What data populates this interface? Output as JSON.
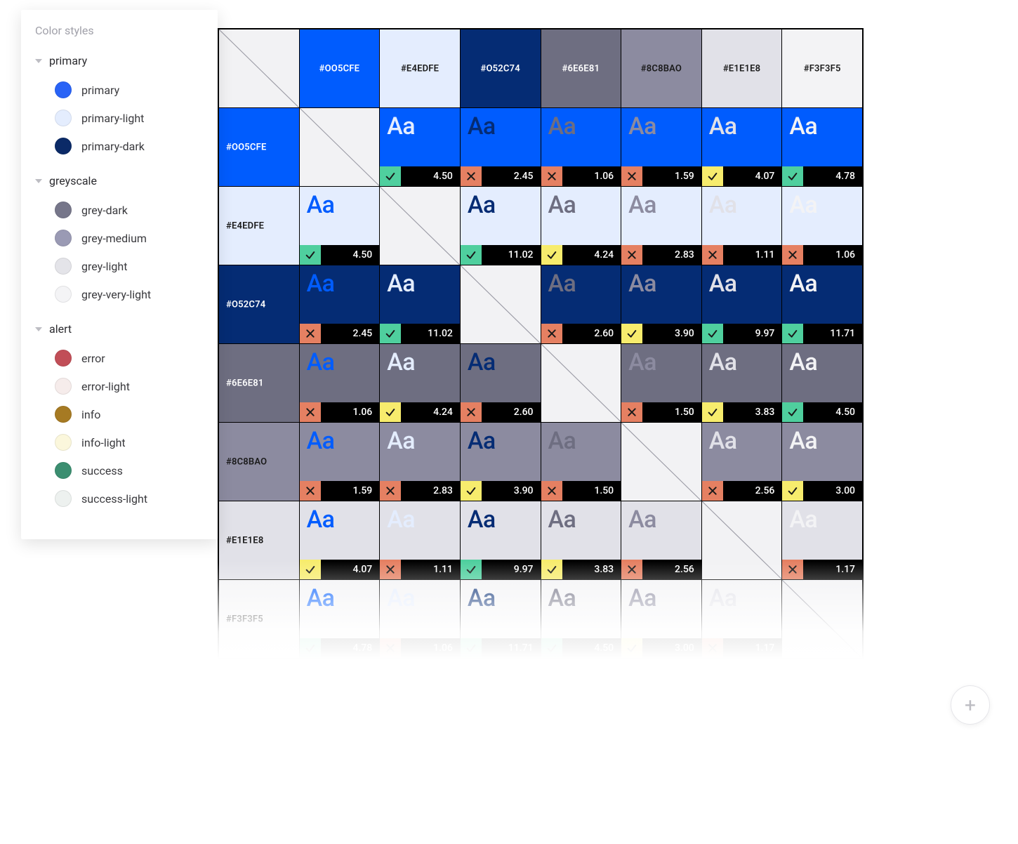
{
  "sidebar": {
    "title": "Color styles",
    "groups": [
      {
        "label": "primary",
        "items": [
          {
            "label": "primary",
            "swatch": "#2963f6"
          },
          {
            "label": "primary-light",
            "swatch": "#e4edfe"
          },
          {
            "label": "primary-dark",
            "swatch": "#0b2a67"
          }
        ]
      },
      {
        "label": "greyscale",
        "items": [
          {
            "label": "grey-dark",
            "swatch": "#76768a"
          },
          {
            "label": "grey-medium",
            "swatch": "#9a9ab4"
          },
          {
            "label": "grey-light",
            "swatch": "#e4e4e9"
          },
          {
            "label": "grey-very-light",
            "swatch": "#f4f4f6"
          }
        ]
      },
      {
        "label": "alert",
        "items": [
          {
            "label": "error",
            "swatch": "#c14e57"
          },
          {
            "label": "error-light",
            "swatch": "#f6eceb"
          },
          {
            "label": "info",
            "swatch": "#a67a23"
          },
          {
            "label": "info-light",
            "swatch": "#fbf7dc"
          },
          {
            "label": "success",
            "swatch": "#3b8e70"
          },
          {
            "label": "success-light",
            "swatch": "#edf1ef"
          }
        ]
      }
    ]
  },
  "matrix": {
    "sample_text": "Aa",
    "aa_fontsize": 34,
    "header_fontsize": 13,
    "score_fontsize": 14,
    "border_color": "#000000",
    "diagonal_bg": "#f2f2f4",
    "diagonal_line": "#9b9ba5",
    "score_bar_bg": "#000000",
    "score_text_color": "#ffffff",
    "status_colors": {
      "pass": "#4fcf9e",
      "fail": "#e58062",
      "warn": "#f7ec6d"
    },
    "status_icon_stroke": "#1a1a1a",
    "colors": [
      {
        "hex": "#005CFE",
        "label": "#OO5CFE",
        "label_color": "#ffffff"
      },
      {
        "hex": "#E4EDFE",
        "label": "#E4EDFE",
        "label_color": "#1a1a1a"
      },
      {
        "hex": "#052C74",
        "label": "#O52C74",
        "label_color": "#ffffff"
      },
      {
        "hex": "#6E6E81",
        "label": "#6E6E81",
        "label_color": "#ffffff"
      },
      {
        "hex": "#8C8BA0",
        "label": "#8C8BAO",
        "label_color": "#1a1a1a"
      },
      {
        "hex": "#E1E1E8",
        "label": "#E1E1E8",
        "label_color": "#1a1a1a"
      },
      {
        "hex": "#F3F3F5",
        "label": "#F3F3F5",
        "label_color": "#1a1a1a"
      }
    ],
    "scores": [
      [
        null,
        {
          "v": "4.50",
          "s": "pass"
        },
        {
          "v": "2.45",
          "s": "fail"
        },
        {
          "v": "1.06",
          "s": "fail"
        },
        {
          "v": "1.59",
          "s": "fail"
        },
        {
          "v": "4.07",
          "s": "warn"
        },
        {
          "v": "4.78",
          "s": "pass"
        }
      ],
      [
        {
          "v": "4.50",
          "s": "pass"
        },
        null,
        {
          "v": "11.02",
          "s": "pass"
        },
        {
          "v": "4.24",
          "s": "warn"
        },
        {
          "v": "2.83",
          "s": "fail"
        },
        {
          "v": "1.11",
          "s": "fail"
        },
        {
          "v": "1.06",
          "s": "fail"
        }
      ],
      [
        {
          "v": "2.45",
          "s": "fail"
        },
        {
          "v": "11.02",
          "s": "pass"
        },
        null,
        {
          "v": "2.60",
          "s": "fail"
        },
        {
          "v": "3.90",
          "s": "warn"
        },
        {
          "v": "9.97",
          "s": "pass"
        },
        {
          "v": "11.71",
          "s": "pass"
        }
      ],
      [
        {
          "v": "1.06",
          "s": "fail"
        },
        {
          "v": "4.24",
          "s": "warn"
        },
        {
          "v": "2.60",
          "s": "fail"
        },
        null,
        {
          "v": "1.50",
          "s": "fail"
        },
        {
          "v": "3.83",
          "s": "warn"
        },
        {
          "v": "4.50",
          "s": "pass"
        }
      ],
      [
        {
          "v": "1.59",
          "s": "fail"
        },
        {
          "v": "2.83",
          "s": "fail"
        },
        {
          "v": "3.90",
          "s": "warn"
        },
        {
          "v": "1.50",
          "s": "fail"
        },
        null,
        {
          "v": "2.56",
          "s": "fail"
        },
        {
          "v": "3.00",
          "s": "warn"
        }
      ],
      [
        {
          "v": "4.07",
          "s": "warn"
        },
        {
          "v": "1.11",
          "s": "fail"
        },
        {
          "v": "9.97",
          "s": "pass"
        },
        {
          "v": "3.83",
          "s": "warn"
        },
        {
          "v": "2.56",
          "s": "fail"
        },
        null,
        {
          "v": "1.17",
          "s": "fail"
        }
      ],
      [
        {
          "v": "4.78",
          "s": "pass"
        },
        {
          "v": "1.06",
          "s": "fail"
        },
        {
          "v": "11.71",
          "s": "pass"
        },
        {
          "v": "4.50",
          "s": "pass"
        },
        {
          "v": "3.00",
          "s": "warn"
        },
        {
          "v": "1.17",
          "s": "fail"
        },
        null
      ]
    ]
  },
  "add_button": {
    "glyph": "+"
  }
}
